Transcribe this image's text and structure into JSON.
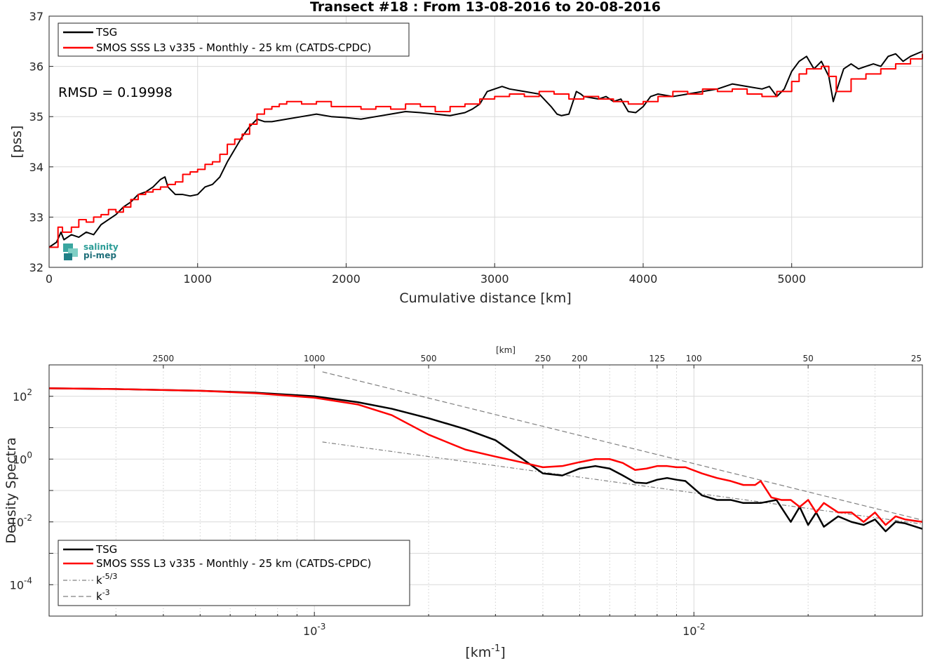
{
  "chart_data": [
    {
      "type": "line",
      "title": "Transect #18 : From 13-08-2016 to 20-08-2016",
      "xlabel": "Cumulative distance [km]",
      "ylabel": "[pss]",
      "xlim": [
        0,
        5880
      ],
      "ylim": [
        32,
        37
      ],
      "x_ticks": [
        "0",
        "1000",
        "2000",
        "3000",
        "4000",
        "5000"
      ],
      "y_ticks": [
        "32",
        "33",
        "34",
        "35",
        "36",
        "37"
      ],
      "grid": true,
      "legend_position": "top-left",
      "annotation": "RMSD = 0.19998",
      "logo": {
        "line1": "salinity",
        "line2": "pi-mep"
      },
      "series": [
        {
          "name": "TSG",
          "color": "#000000",
          "x": [
            0,
            50,
            80,
            100,
            150,
            200,
            250,
            300,
            350,
            400,
            450,
            500,
            550,
            600,
            650,
            700,
            750,
            780,
            800,
            850,
            900,
            950,
            1000,
            1050,
            1100,
            1150,
            1200,
            1250,
            1300,
            1350,
            1400,
            1450,
            1500,
            1600,
            1700,
            1800,
            1900,
            2000,
            2100,
            2200,
            2300,
            2400,
            2500,
            2600,
            2700,
            2800,
            2850,
            2900,
            2950,
            3000,
            3050,
            3100,
            3200,
            3300,
            3380,
            3420,
            3450,
            3500,
            3550,
            3580,
            3600,
            3700,
            3750,
            3800,
            3850,
            3900,
            3950,
            4000,
            4050,
            4100,
            4200,
            4300,
            4400,
            4500,
            4600,
            4700,
            4800,
            4850,
            4900,
            4950,
            5000,
            5050,
            5100,
            5150,
            5200,
            5250,
            5280,
            5300,
            5350,
            5400,
            5450,
            5500,
            5550,
            5600,
            5650,
            5700,
            5750,
            5800,
            5880
          ],
          "y": [
            32.4,
            32.5,
            32.7,
            32.55,
            32.65,
            32.6,
            32.7,
            32.65,
            32.85,
            32.95,
            33.05,
            33.2,
            33.3,
            33.45,
            33.5,
            33.6,
            33.75,
            33.8,
            33.6,
            33.45,
            33.45,
            33.42,
            33.45,
            33.6,
            33.65,
            33.8,
            34.1,
            34.35,
            34.6,
            34.8,
            34.95,
            34.9,
            34.9,
            34.95,
            35.0,
            35.05,
            35.0,
            34.98,
            34.95,
            35.0,
            35.05,
            35.1,
            35.08,
            35.05,
            35.02,
            35.08,
            35.15,
            35.25,
            35.5,
            35.55,
            35.6,
            35.55,
            35.5,
            35.45,
            35.2,
            35.05,
            35.02,
            35.05,
            35.5,
            35.45,
            35.4,
            35.35,
            35.4,
            35.3,
            35.35,
            35.1,
            35.08,
            35.2,
            35.4,
            35.45,
            35.4,
            35.45,
            35.5,
            35.55,
            35.65,
            35.6,
            35.55,
            35.6,
            35.4,
            35.55,
            35.9,
            36.1,
            36.2,
            35.95,
            36.1,
            35.8,
            35.3,
            35.5,
            35.95,
            36.05,
            35.95,
            36.0,
            36.05,
            36.0,
            36.2,
            36.25,
            36.1,
            36.2,
            36.3
          ]
        },
        {
          "name": "SMOS SSS L3 v335 - Monthly - 25 km (CATDS-CPDC)",
          "color": "#ff0000",
          "x": [
            0,
            60,
            90,
            150,
            200,
            250,
            300,
            350,
            400,
            450,
            500,
            550,
            600,
            650,
            700,
            750,
            800,
            850,
            900,
            950,
            1000,
            1050,
            1100,
            1150,
            1200,
            1250,
            1300,
            1350,
            1400,
            1450,
            1500,
            1550,
            1600,
            1700,
            1800,
            1900,
            2000,
            2100,
            2200,
            2300,
            2400,
            2500,
            2600,
            2700,
            2800,
            2900,
            3000,
            3100,
            3200,
            3300,
            3400,
            3500,
            3600,
            3700,
            3800,
            3900,
            4000,
            4100,
            4200,
            4300,
            4400,
            4500,
            4600,
            4700,
            4800,
            4900,
            5000,
            5050,
            5100,
            5200,
            5250,
            5300,
            5400,
            5500,
            5600,
            5700,
            5800,
            5880
          ],
          "y": [
            32.4,
            32.8,
            32.7,
            32.8,
            32.95,
            32.9,
            33.0,
            33.05,
            33.15,
            33.1,
            33.2,
            33.35,
            33.45,
            33.5,
            33.55,
            33.6,
            33.65,
            33.7,
            33.85,
            33.9,
            33.95,
            34.05,
            34.1,
            34.25,
            34.45,
            34.55,
            34.65,
            34.85,
            35.05,
            35.15,
            35.2,
            35.25,
            35.3,
            35.25,
            35.3,
            35.2,
            35.2,
            35.15,
            35.2,
            35.15,
            35.25,
            35.2,
            35.1,
            35.2,
            35.25,
            35.35,
            35.4,
            35.45,
            35.4,
            35.5,
            35.45,
            35.35,
            35.4,
            35.35,
            35.3,
            35.25,
            35.3,
            35.4,
            35.5,
            35.45,
            35.55,
            35.5,
            35.55,
            35.45,
            35.4,
            35.5,
            35.7,
            35.85,
            35.95,
            36.0,
            35.8,
            35.5,
            35.75,
            35.85,
            35.95,
            36.05,
            36.15,
            36.25
          ]
        }
      ]
    },
    {
      "type": "line",
      "title": "",
      "xlabel": "[km-1]",
      "ylabel": "Density Spectra",
      "x_scale": "log",
      "y_scale": "log",
      "xlim": [
        0.0002,
        0.04
      ],
      "ylim": [
        1e-05,
        1000
      ],
      "x_ticks": [
        {
          "value": 0.001,
          "label": "10",
          "exp": "-3"
        },
        {
          "value": 0.01,
          "label": "10",
          "exp": "-2"
        }
      ],
      "y_ticks": [
        {
          "value": 100,
          "label": "10",
          "exp": "2"
        },
        {
          "value": 1,
          "label": "10",
          "exp": "0"
        },
        {
          "value": 0.01,
          "label": "10",
          "exp": "-2"
        },
        {
          "value": 0.0001,
          "label": "10",
          "exp": "-4"
        }
      ],
      "top_axis_label": "[km]",
      "top_ticks": [
        "2500",
        "1000",
        "500",
        "250",
        "200",
        "125",
        "100",
        "50",
        "25"
      ],
      "grid": true,
      "legend_position": "bottom-left",
      "series": [
        {
          "name": "TSG",
          "color": "#000000",
          "x": [
            0.0002,
            0.0003,
            0.0005,
            0.0007,
            0.001,
            0.0013,
            0.0016,
            0.002,
            0.0025,
            0.003,
            0.0035,
            0.004,
            0.0045,
            0.005,
            0.0055,
            0.006,
            0.0065,
            0.007,
            0.0075,
            0.008,
            0.0085,
            0.009,
            0.0095,
            0.0105,
            0.0115,
            0.0125,
            0.0135,
            0.015,
            0.0165,
            0.018,
            0.019,
            0.02,
            0.021,
            0.022,
            0.024,
            0.026,
            0.028,
            0.03,
            0.032,
            0.034,
            0.036,
            0.04
          ],
          "y": [
            180,
            170,
            150,
            130,
            100,
            65,
            40,
            20,
            9,
            4,
            1.1,
            0.35,
            0.3,
            0.5,
            0.6,
            0.5,
            0.3,
            0.18,
            0.17,
            0.22,
            0.25,
            0.22,
            0.2,
            0.07,
            0.05,
            0.05,
            0.04,
            0.04,
            0.05,
            0.01,
            0.03,
            0.008,
            0.02,
            0.007,
            0.015,
            0.01,
            0.008,
            0.012,
            0.005,
            0.01,
            0.009,
            0.006
          ]
        },
        {
          "name": "SMOS SSS L3 v335 - Monthly - 25 km (CATDS-CPDC)",
          "color": "#ff0000",
          "x": [
            0.0002,
            0.0003,
            0.0005,
            0.0007,
            0.001,
            0.0013,
            0.0016,
            0.002,
            0.0025,
            0.003,
            0.0035,
            0.004,
            0.0045,
            0.005,
            0.0055,
            0.006,
            0.0065,
            0.007,
            0.0075,
            0.008,
            0.0085,
            0.009,
            0.0095,
            0.0105,
            0.0115,
            0.0125,
            0.0135,
            0.0145,
            0.015,
            0.016,
            0.017,
            0.018,
            0.019,
            0.02,
            0.021,
            0.022,
            0.024,
            0.026,
            0.028,
            0.03,
            0.032,
            0.034,
            0.036,
            0.04
          ],
          "y": [
            180,
            170,
            150,
            125,
            90,
            55,
            25,
            6,
            2,
            1.2,
            0.8,
            0.55,
            0.6,
            0.8,
            1.0,
            1.0,
            0.75,
            0.45,
            0.5,
            0.6,
            0.6,
            0.55,
            0.55,
            0.35,
            0.25,
            0.2,
            0.15,
            0.15,
            0.2,
            0.06,
            0.05,
            0.05,
            0.03,
            0.05,
            0.02,
            0.04,
            0.02,
            0.02,
            0.01,
            0.02,
            0.008,
            0.015,
            0.012,
            0.01
          ]
        }
      ],
      "reference_lines": [
        {
          "name": "k",
          "exp": "-5/3",
          "style": "dash-dot",
          "color": "#808080",
          "x": [
            0.00105,
            0.04
          ],
          "y": [
            3.5,
            0.0085
          ]
        },
        {
          "name": "k",
          "exp": "-3",
          "style": "dashed",
          "color": "#808080",
          "x": [
            0.00105,
            0.04
          ],
          "y": [
            600,
            0.0114
          ]
        }
      ]
    }
  ]
}
